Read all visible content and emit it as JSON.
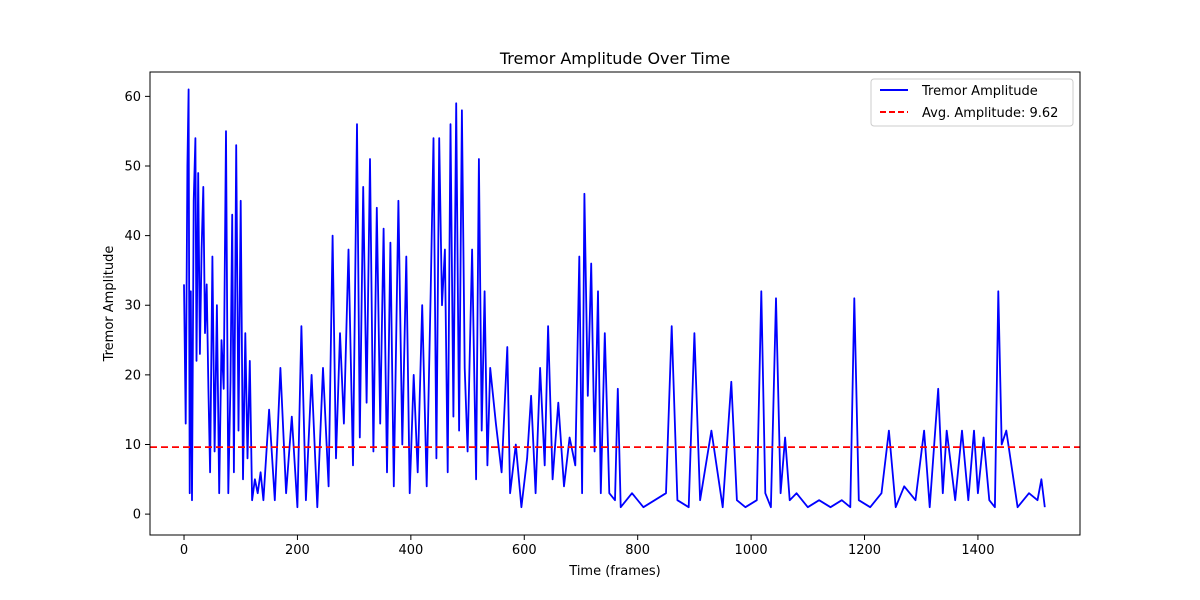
{
  "chart_data": {
    "type": "line",
    "title": "Tremor Amplitude Over Time",
    "xlabel": "Time (frames)",
    "ylabel": "Tremor Amplitude",
    "xlim": [
      -60,
      1580
    ],
    "ylim": [
      -3,
      63.5
    ],
    "xticks": [
      0,
      200,
      400,
      600,
      800,
      1000,
      1200,
      1400
    ],
    "yticks": [
      0,
      10,
      20,
      30,
      40,
      50,
      60
    ],
    "grid": false,
    "legend_position": "top-right",
    "series": [
      {
        "name": "Tremor Amplitude",
        "color": "#0000ff",
        "style": "solid",
        "x": [
          0,
          3,
          6,
          8,
          10,
          12,
          14,
          17,
          20,
          22,
          25,
          28,
          31,
          34,
          37,
          40,
          43,
          46,
          50,
          54,
          58,
          62,
          66,
          70,
          74,
          78,
          82,
          85,
          88,
          92,
          96,
          100,
          104,
          108,
          112,
          116,
          120,
          125,
          130,
          135,
          140,
          150,
          160,
          170,
          180,
          190,
          200,
          207,
          215,
          225,
          235,
          245,
          255,
          262,
          268,
          275,
          282,
          290,
          298,
          305,
          310,
          316,
          322,
          328,
          334,
          340,
          346,
          352,
          358,
          364,
          370,
          378,
          385,
          392,
          398,
          405,
          412,
          420,
          428,
          435,
          440,
          445,
          450,
          455,
          460,
          465,
          470,
          475,
          480,
          485,
          490,
          495,
          500,
          508,
          515,
          520,
          525,
          530,
          535,
          540,
          550,
          560,
          570,
          575,
          585,
          595,
          605,
          612,
          620,
          628,
          636,
          642,
          650,
          660,
          670,
          680,
          690,
          697,
          702,
          706,
          712,
          718,
          724,
          730,
          735,
          742,
          750,
          760,
          765,
          770,
          790,
          810,
          830,
          850,
          860,
          870,
          890,
          900,
          910,
          930,
          950,
          965,
          975,
          990,
          1010,
          1018,
          1025,
          1035,
          1044,
          1052,
          1060,
          1068,
          1080,
          1100,
          1120,
          1140,
          1160,
          1175,
          1182,
          1190,
          1210,
          1230,
          1243,
          1255,
          1270,
          1290,
          1305,
          1315,
          1330,
          1338,
          1345,
          1360,
          1372,
          1383,
          1393,
          1400,
          1410,
          1420,
          1430,
          1436,
          1442,
          1450,
          1470,
          1490,
          1505,
          1512,
          1518
        ],
        "y": [
          33,
          13,
          50,
          61,
          3,
          32,
          2,
          45,
          54,
          22,
          49,
          23,
          38,
          47,
          26,
          33,
          18,
          6,
          37,
          9,
          30,
          3,
          25,
          18,
          55,
          3,
          19,
          43,
          6,
          53,
          12,
          45,
          5,
          26,
          8,
          22,
          2,
          5,
          3,
          6,
          2,
          15,
          2,
          21,
          3,
          14,
          1,
          27,
          2,
          20,
          1,
          21,
          4,
          40,
          8,
          26,
          13,
          38,
          7,
          56,
          11,
          47,
          16,
          51,
          9,
          44,
          13,
          41,
          6,
          39,
          4,
          45,
          10,
          37,
          3,
          20,
          6,
          30,
          4,
          32,
          54,
          8,
          54,
          30,
          38,
          6,
          56,
          14,
          59,
          12,
          58,
          21,
          9,
          38,
          5,
          51,
          12,
          32,
          7,
          21,
          13,
          6,
          24,
          3,
          10,
          1,
          8,
          17,
          3,
          21,
          7,
          27,
          5,
          16,
          4,
          11,
          7,
          37,
          3,
          46,
          17,
          36,
          9,
          32,
          3,
          26,
          3,
          2,
          18,
          1,
          3,
          1,
          2,
          3,
          27,
          2,
          1,
          26,
          2,
          12,
          1,
          19,
          2,
          1,
          2,
          32,
          3,
          1,
          31,
          3,
          11,
          2,
          3,
          1,
          2,
          1,
          2,
          1,
          31,
          2,
          1,
          3,
          12,
          1,
          4,
          2,
          12,
          1,
          18,
          3,
          12,
          2,
          12,
          2,
          12,
          3,
          11,
          2,
          1,
          32,
          10,
          12,
          1,
          3,
          2,
          5,
          1
        ],
        "y_note": "approximate readings of the 1517-frame trace"
      },
      {
        "name": "Avg. Amplitude: 9.62",
        "color": "#ff0000",
        "style": "dashed",
        "y_constant": 9.62
      }
    ]
  }
}
